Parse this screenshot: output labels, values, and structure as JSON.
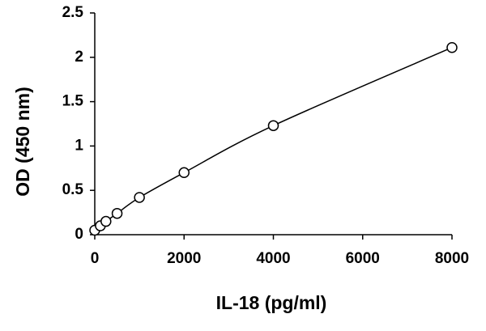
{
  "chart_data": {
    "type": "scatter-line",
    "x_label": "IL-18 (pg/ml)",
    "y_label": "OD (450 nm)",
    "x": [
      0,
      125,
      250,
      500,
      1000,
      2000,
      4000,
      8000
    ],
    "values": [
      0.05,
      0.1,
      0.15,
      0.24,
      0.42,
      0.7,
      1.23,
      2.11
    ],
    "color": "#000000",
    "xlim": [
      0,
      8000
    ],
    "xticks": [
      0,
      2000,
      4000,
      6000,
      8000
    ],
    "ylim": [
      0,
      2.5
    ],
    "yticks": [
      0,
      0.5,
      1,
      1.5,
      2,
      2.5
    ]
  }
}
